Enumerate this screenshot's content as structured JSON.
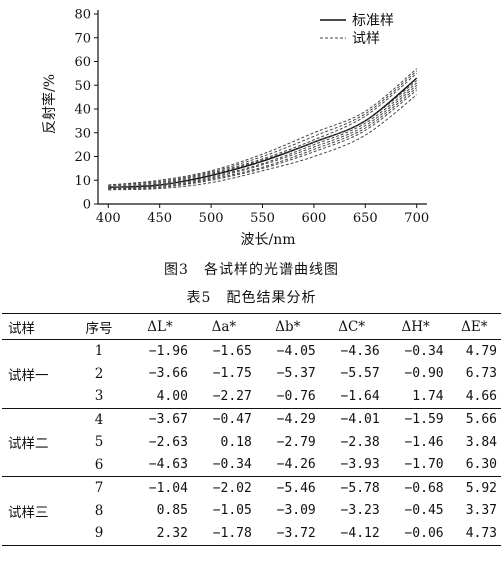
{
  "figure_caption": "图3　各试样的光谱曲线图",
  "table_caption": "表5　配色结果分析",
  "chart_data": {
    "type": "line",
    "xlabel": "波长/nm",
    "ylabel": "反射率/%",
    "xlim": [
      390,
      710
    ],
    "ylim": [
      0,
      80
    ],
    "x_ticks": [
      400,
      450,
      500,
      550,
      600,
      650,
      700
    ],
    "y_ticks": [
      0,
      10,
      20,
      30,
      40,
      50,
      60,
      70,
      80
    ],
    "legend_position": "top-right",
    "legend": [
      "标准样",
      "试样"
    ],
    "series": [
      {
        "name": "标准样",
        "style": "solid",
        "x": [
          400,
          450,
          500,
          550,
          600,
          650,
          700
        ],
        "y": [
          7,
          8,
          12,
          18,
          26,
          35,
          53
        ]
      },
      {
        "name": "试样",
        "style": "dashed",
        "x": [
          400,
          450,
          500,
          550,
          600,
          650,
          700
        ],
        "y": [
          8,
          10,
          14,
          21,
          30,
          39,
          57
        ]
      },
      {
        "name": "试样",
        "style": "dashed",
        "x": [
          400,
          450,
          500,
          550,
          600,
          650,
          700
        ],
        "y": [
          7.5,
          9,
          13,
          19,
          27,
          37,
          55
        ]
      },
      {
        "name": "试样",
        "style": "dashed",
        "x": [
          400,
          450,
          500,
          550,
          600,
          650,
          700
        ],
        "y": [
          7,
          8.5,
          12.5,
          18.5,
          26,
          35,
          52
        ]
      },
      {
        "name": "试样",
        "style": "dashed",
        "x": [
          400,
          450,
          500,
          550,
          600,
          650,
          700
        ],
        "y": [
          6.5,
          7.5,
          11,
          16.5,
          24,
          33,
          50
        ]
      },
      {
        "name": "试样",
        "style": "dashed",
        "x": [
          400,
          450,
          500,
          550,
          600,
          650,
          700
        ],
        "y": [
          6,
          7,
          10,
          15,
          22,
          31,
          48
        ]
      },
      {
        "name": "试样",
        "style": "dashed",
        "x": [
          400,
          450,
          500,
          550,
          600,
          650,
          700
        ],
        "y": [
          6,
          6.5,
          9,
          14,
          20,
          29,
          46
        ]
      },
      {
        "name": "试样",
        "style": "dashed",
        "x": [
          400,
          450,
          500,
          550,
          600,
          650,
          700
        ],
        "y": [
          8,
          9.5,
          13.5,
          20,
          28.5,
          38,
          56
        ]
      },
      {
        "name": "试样",
        "style": "dashed",
        "x": [
          400,
          450,
          500,
          550,
          600,
          650,
          700
        ],
        "y": [
          7,
          8,
          11.5,
          17,
          25,
          34,
          51
        ]
      },
      {
        "name": "试样",
        "style": "dashed",
        "x": [
          400,
          450,
          500,
          550,
          600,
          650,
          700
        ],
        "y": [
          6.5,
          7,
          10.5,
          15.5,
          23,
          32,
          49
        ]
      }
    ]
  },
  "table": {
    "headers": [
      "试样",
      "序号",
      "ΔL*",
      "Δa*",
      "Δb*",
      "ΔC*",
      "ΔH*",
      "ΔE*"
    ],
    "groups": [
      {
        "label": "试样一",
        "rows": [
          [
            "1",
            "−1.96",
            "−1.65",
            "−4.05",
            "−4.36",
            "−0.34",
            "4.79"
          ],
          [
            "2",
            "−3.66",
            "−1.75",
            "−5.37",
            "−5.57",
            "−0.90",
            "6.73"
          ],
          [
            "3",
            "4.00",
            "−2.27",
            "−0.76",
            "−1.64",
            "1.74",
            "4.66"
          ]
        ]
      },
      {
        "label": "试样二",
        "rows": [
          [
            "4",
            "−3.67",
            "−0.47",
            "−4.29",
            "−4.01",
            "−1.59",
            "5.66"
          ],
          [
            "5",
            "−2.63",
            "0.18",
            "−2.79",
            "−2.38",
            "−1.46",
            "3.84"
          ],
          [
            "6",
            "−4.63",
            "−0.34",
            "−4.26",
            "−3.93",
            "−1.70",
            "6.30"
          ]
        ]
      },
      {
        "label": "试样三",
        "rows": [
          [
            "7",
            "−1.04",
            "−2.02",
            "−5.46",
            "−5.78",
            "−0.68",
            "5.92"
          ],
          [
            "8",
            "0.85",
            "−1.05",
            "−3.09",
            "−3.23",
            "−0.45",
            "3.37"
          ],
          [
            "9",
            "2.32",
            "−1.78",
            "−3.72",
            "−4.12",
            "−0.06",
            "4.73"
          ]
        ]
      }
    ]
  }
}
